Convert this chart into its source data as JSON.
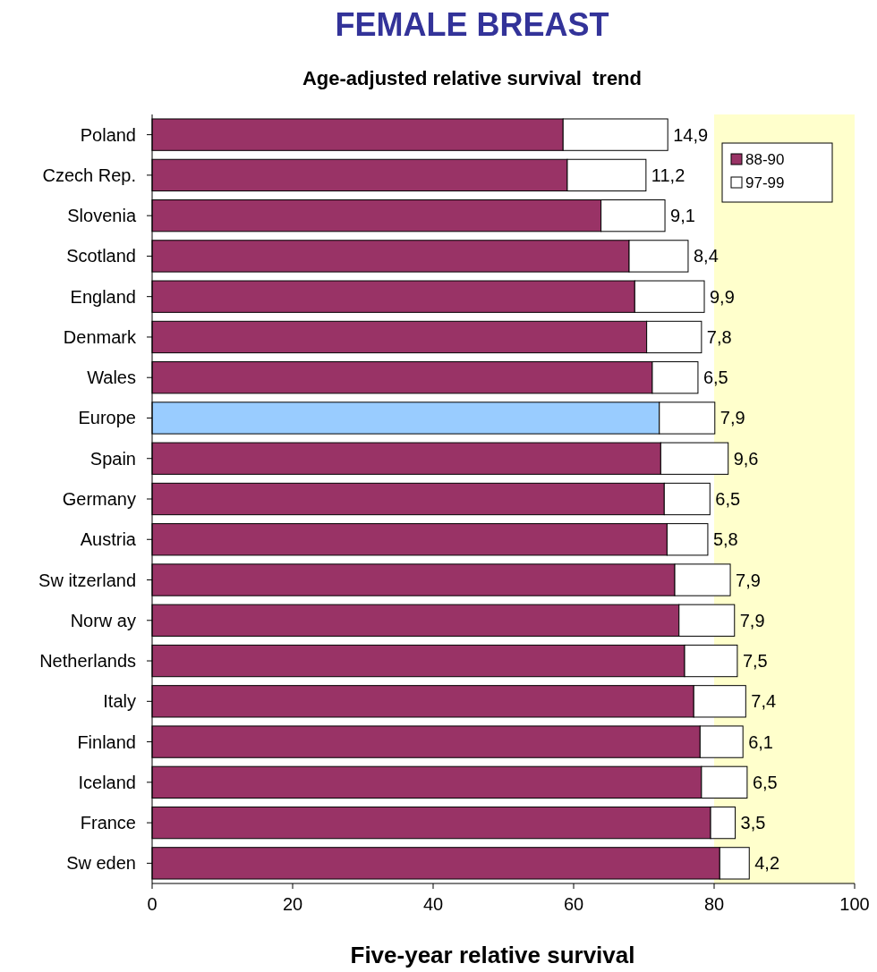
{
  "chart_data": {
    "type": "bar",
    "orientation": "horizontal",
    "stacked": true,
    "title": "FEMALE BREAST",
    "subtitle": "Age-adjusted relative survival  trend",
    "xlabel": "Five-year relative survival",
    "categories": [
      "Poland",
      "Czech Rep.",
      "Slovenia",
      "Scotland",
      "England",
      "Denmark",
      "Wales",
      "Europe",
      "Spain",
      "Germany",
      "Austria",
      "Sw itzerland",
      "Norw ay",
      "Netherlands",
      "Italy",
      "Finland",
      "Iceland",
      "France",
      "Sw eden"
    ],
    "series": [
      {
        "name": "88-90",
        "color": "#993366",
        "colors": [
          "#993366",
          "#993366",
          "#993366",
          "#993366",
          "#993366",
          "#993366",
          "#993366",
          "#99ccff",
          "#993366",
          "#993366",
          "#993366",
          "#993366",
          "#993366",
          "#993366",
          "#993366",
          "#993366",
          "#993366",
          "#993366",
          "#993366"
        ],
        "values": [
          58.5,
          59.1,
          63.9,
          67.9,
          68.7,
          70.4,
          71.2,
          72.2,
          72.4,
          72.9,
          73.3,
          74.4,
          75.0,
          75.8,
          77.1,
          78.0,
          78.2,
          79.5,
          80.8
        ]
      },
      {
        "name": "97-99",
        "color": "#ffffff",
        "values": [
          14.9,
          11.2,
          9.1,
          8.4,
          9.9,
          7.8,
          6.5,
          7.9,
          9.6,
          6.5,
          5.8,
          7.9,
          7.9,
          7.5,
          7.4,
          6.1,
          6.5,
          3.5,
          4.2
        ],
        "value_labels": [
          "14,9",
          "11,2",
          "9,1",
          "8,4",
          "9,9",
          "7,8",
          "6,5",
          "7,9",
          "9,6",
          "6,5",
          "5,8",
          "7,9",
          "7,9",
          "7,5",
          "7,4",
          "6,1",
          "6,5",
          "3,5",
          "4,2"
        ]
      }
    ],
    "xlim": [
      0,
      100
    ],
    "xticks": [
      0,
      20,
      40,
      60,
      80,
      100
    ],
    "bands": [
      {
        "axis": "x",
        "from": 80,
        "to": 100,
        "color": "#ffffcc"
      }
    ],
    "legend": "top right",
    "grid": false
  }
}
